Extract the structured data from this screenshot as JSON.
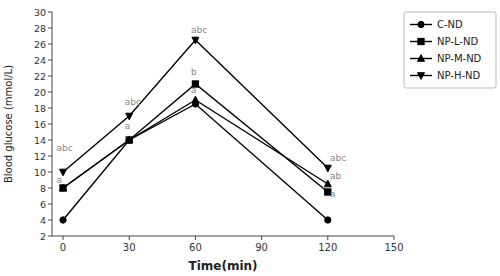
{
  "chart_data": {
    "type": "line",
    "xlabel": "Time(min)",
    "ylabel": "Blood glucose (mmol/L)",
    "x": [
      0,
      30,
      60,
      120
    ],
    "series": [
      {
        "name": "C-ND",
        "color": "#000000",
        "marker": "circle",
        "line_style": "solid",
        "values": [
          4.0,
          14.0,
          18.5,
          4.0
        ]
      },
      {
        "name": "NP-L-ND",
        "color": "#000000",
        "marker": "square",
        "line_style": "solid",
        "values": [
          8.0,
          14.0,
          21.0,
          7.5
        ]
      },
      {
        "name": "NP-M-ND",
        "color": "#000000",
        "marker": "triangle-up",
        "line_style": "solid",
        "values": [
          8.0,
          14.0,
          19.0,
          8.5
        ]
      },
      {
        "name": "NP-H-ND",
        "color": "#000000",
        "marker": "triangle-down",
        "line_style": "solid",
        "values": [
          10.0,
          17.0,
          26.5,
          10.5
        ]
      }
    ],
    "annotations": [
      {
        "text": "abc",
        "x": -3,
        "y": 12.5
      },
      {
        "text": "a",
        "x": -3,
        "y": 8.5
      },
      {
        "text": "abc",
        "x": 28,
        "y": 18.2
      },
      {
        "text": "a",
        "x": 28,
        "y": 15.2
      },
      {
        "text": "abc",
        "x": 58,
        "y": 27.2
      },
      {
        "text": "b",
        "x": 58,
        "y": 22.0
      },
      {
        "text": "a",
        "x": 58,
        "y": 19.8
      },
      {
        "text": "abc",
        "x": 121,
        "y": 11.2
      },
      {
        "text": "ab",
        "x": 121,
        "y": 9.0
      },
      {
        "text": "a",
        "x": 121,
        "y": 6.8
      }
    ],
    "xlim": [
      -5,
      150
    ],
    "ylim": [
      2,
      30
    ],
    "xticks": [
      0,
      30,
      60,
      90,
      120,
      150
    ],
    "yticks": [
      2,
      4,
      6,
      8,
      10,
      12,
      14,
      16,
      18,
      20,
      22,
      24,
      26,
      28,
      30
    ],
    "grid": false,
    "legend": "right"
  }
}
